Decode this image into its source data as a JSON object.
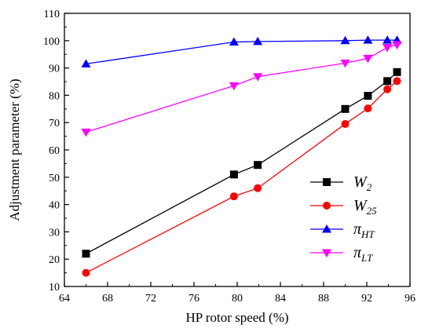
{
  "chart_data": {
    "type": "line",
    "title": "",
    "xlabel": "HP rotor speed (%)",
    "ylabel": "Adjustment parameter (%)",
    "xlim": [
      64,
      96
    ],
    "ylim": [
      10,
      110
    ],
    "xticks": [
      64,
      68,
      72,
      76,
      80,
      84,
      88,
      92,
      96
    ],
    "yticks": [
      10,
      20,
      30,
      40,
      50,
      60,
      70,
      80,
      90,
      100,
      110
    ],
    "grid": false,
    "legend_position": "center-right",
    "series": [
      {
        "name": "W",
        "name_sub": "2",
        "color": "#000000",
        "marker": "square",
        "x": [
          66.0,
          79.7,
          81.9,
          90.0,
          92.1,
          93.9,
          94.8
        ],
        "y": [
          22.0,
          51.0,
          54.5,
          75.0,
          79.8,
          85.2,
          88.5
        ]
      },
      {
        "name": "W",
        "name_sub": "25",
        "color": "#ff0000",
        "marker": "circle",
        "x": [
          66.0,
          79.7,
          81.9,
          90.0,
          92.1,
          93.9,
          94.8
        ],
        "y": [
          15.0,
          43.0,
          46.0,
          69.5,
          75.2,
          82.2,
          85.2
        ]
      },
      {
        "name": "π",
        "name_sub": "HT",
        "color": "#0000ff",
        "marker": "triangle-up",
        "x": [
          66.0,
          79.7,
          81.9,
          90.0,
          92.1,
          93.9,
          94.8
        ],
        "y": [
          91.5,
          99.5,
          99.7,
          100.0,
          100.2,
          100.2,
          100.2
        ]
      },
      {
        "name": "π",
        "name_sub": "LT",
        "color": "#ff00ff",
        "marker": "triangle-down",
        "x": [
          66.0,
          79.7,
          81.9,
          90.0,
          92.1,
          93.9,
          94.8
        ],
        "y": [
          66.5,
          83.5,
          86.8,
          91.8,
          93.5,
          97.5,
          98.5
        ]
      }
    ]
  }
}
